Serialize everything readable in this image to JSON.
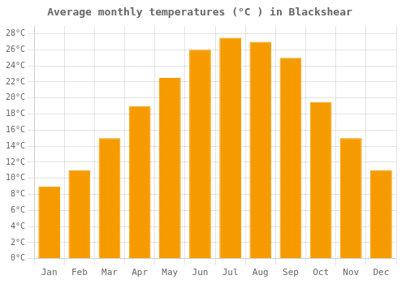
{
  "chart_data": {
    "type": "bar",
    "title": "Average monthly temperatures (°C ) in Blackshear",
    "categories": [
      "Jan",
      "Feb",
      "Mar",
      "Apr",
      "May",
      "Jun",
      "Jul",
      "Aug",
      "Sep",
      "Oct",
      "Nov",
      "Dec"
    ],
    "values": [
      9.0,
      11.0,
      15.0,
      19.0,
      22.5,
      26.0,
      27.5,
      27.0,
      25.0,
      19.5,
      15.0,
      11.0
    ],
    "color": "#F59B00",
    "ylim": [
      0,
      29
    ],
    "yticks": [
      {
        "value": 0,
        "label": "0°C"
      },
      {
        "value": 2,
        "label": "2°C"
      },
      {
        "value": 4,
        "label": "4°C"
      },
      {
        "value": 6,
        "label": "6°C"
      },
      {
        "value": 8,
        "label": "8°C"
      },
      {
        "value": 10,
        "label": "10°C"
      },
      {
        "value": 12,
        "label": "12°C"
      },
      {
        "value": 14,
        "label": "14°C"
      },
      {
        "value": 16,
        "label": "16°C"
      },
      {
        "value": 18,
        "label": "18°C"
      },
      {
        "value": 20,
        "label": "20°C"
      },
      {
        "value": 22,
        "label": "22°C"
      },
      {
        "value": 24,
        "label": "24°C"
      },
      {
        "value": 26,
        "label": "26°C"
      },
      {
        "value": 28,
        "label": "28°C"
      }
    ],
    "grid": true
  }
}
